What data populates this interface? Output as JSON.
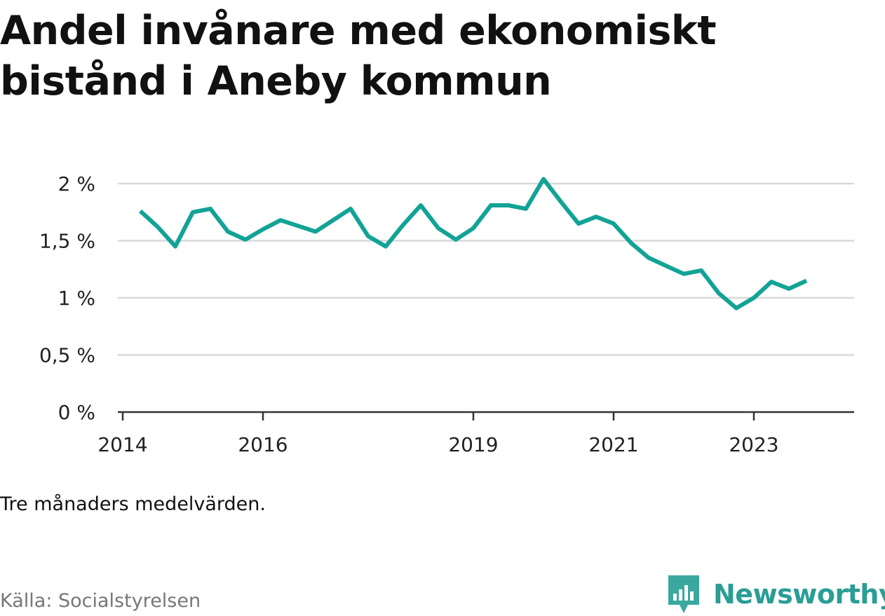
{
  "title": "Andel invånare med ekonomiskt bistånd i Aneby kommun",
  "note": "Tre månaders medelvärden.",
  "source": "Källa: Socialstyrelsen",
  "brand": {
    "name": "Newsworthy",
    "icon": "newsworthy-logo-icon",
    "color": "#2a9d95"
  },
  "colors": {
    "line": "#12a396",
    "grid": "#d9d9d9",
    "axis": "#333333"
  },
  "chart_data": {
    "type": "line",
    "title": "Andel invånare med ekonomiskt bistånd i Aneby kommun",
    "xlabel": "",
    "ylabel": "",
    "ylim": [
      0,
      2
    ],
    "xlim": [
      2013.93,
      2024.43
    ],
    "y_ticks": [
      0,
      0.5,
      1,
      1.5,
      2
    ],
    "y_tick_labels": [
      "0 %",
      "0,5 %",
      "1 %",
      "1,5 %",
      "2 %"
    ],
    "x_ticks": [
      2014,
      2016,
      2019,
      2021,
      2023
    ],
    "x_tick_labels": [
      "2014",
      "2016",
      "2019",
      "2021",
      "2023"
    ],
    "grid": true,
    "series": [
      {
        "name": "Andel invånare med ekonomiskt bistånd",
        "x": [
          2014.25,
          2014.5,
          2014.75,
          2015.0,
          2015.25,
          2015.5,
          2015.75,
          2016.0,
          2016.25,
          2016.5,
          2016.75,
          2017.0,
          2017.25,
          2017.5,
          2017.75,
          2018.0,
          2018.25,
          2018.5,
          2018.75,
          2019.0,
          2019.25,
          2019.5,
          2019.75,
          2020.0,
          2020.25,
          2020.5,
          2020.75,
          2021.0,
          2021.25,
          2021.5,
          2021.75,
          2022.0,
          2022.25,
          2022.5,
          2022.75,
          2023.0,
          2023.25,
          2023.5,
          2023.75
        ],
        "values": [
          1.76,
          1.62,
          1.45,
          1.75,
          1.78,
          1.58,
          1.51,
          1.6,
          1.68,
          1.63,
          1.58,
          1.68,
          1.78,
          1.54,
          1.45,
          1.64,
          1.81,
          1.61,
          1.51,
          1.61,
          1.81,
          1.81,
          1.78,
          2.04,
          1.84,
          1.65,
          1.71,
          1.65,
          1.48,
          1.35,
          1.28,
          1.21,
          1.24,
          1.04,
          0.91,
          1.0,
          1.14,
          1.08,
          1.15
        ]
      }
    ]
  }
}
